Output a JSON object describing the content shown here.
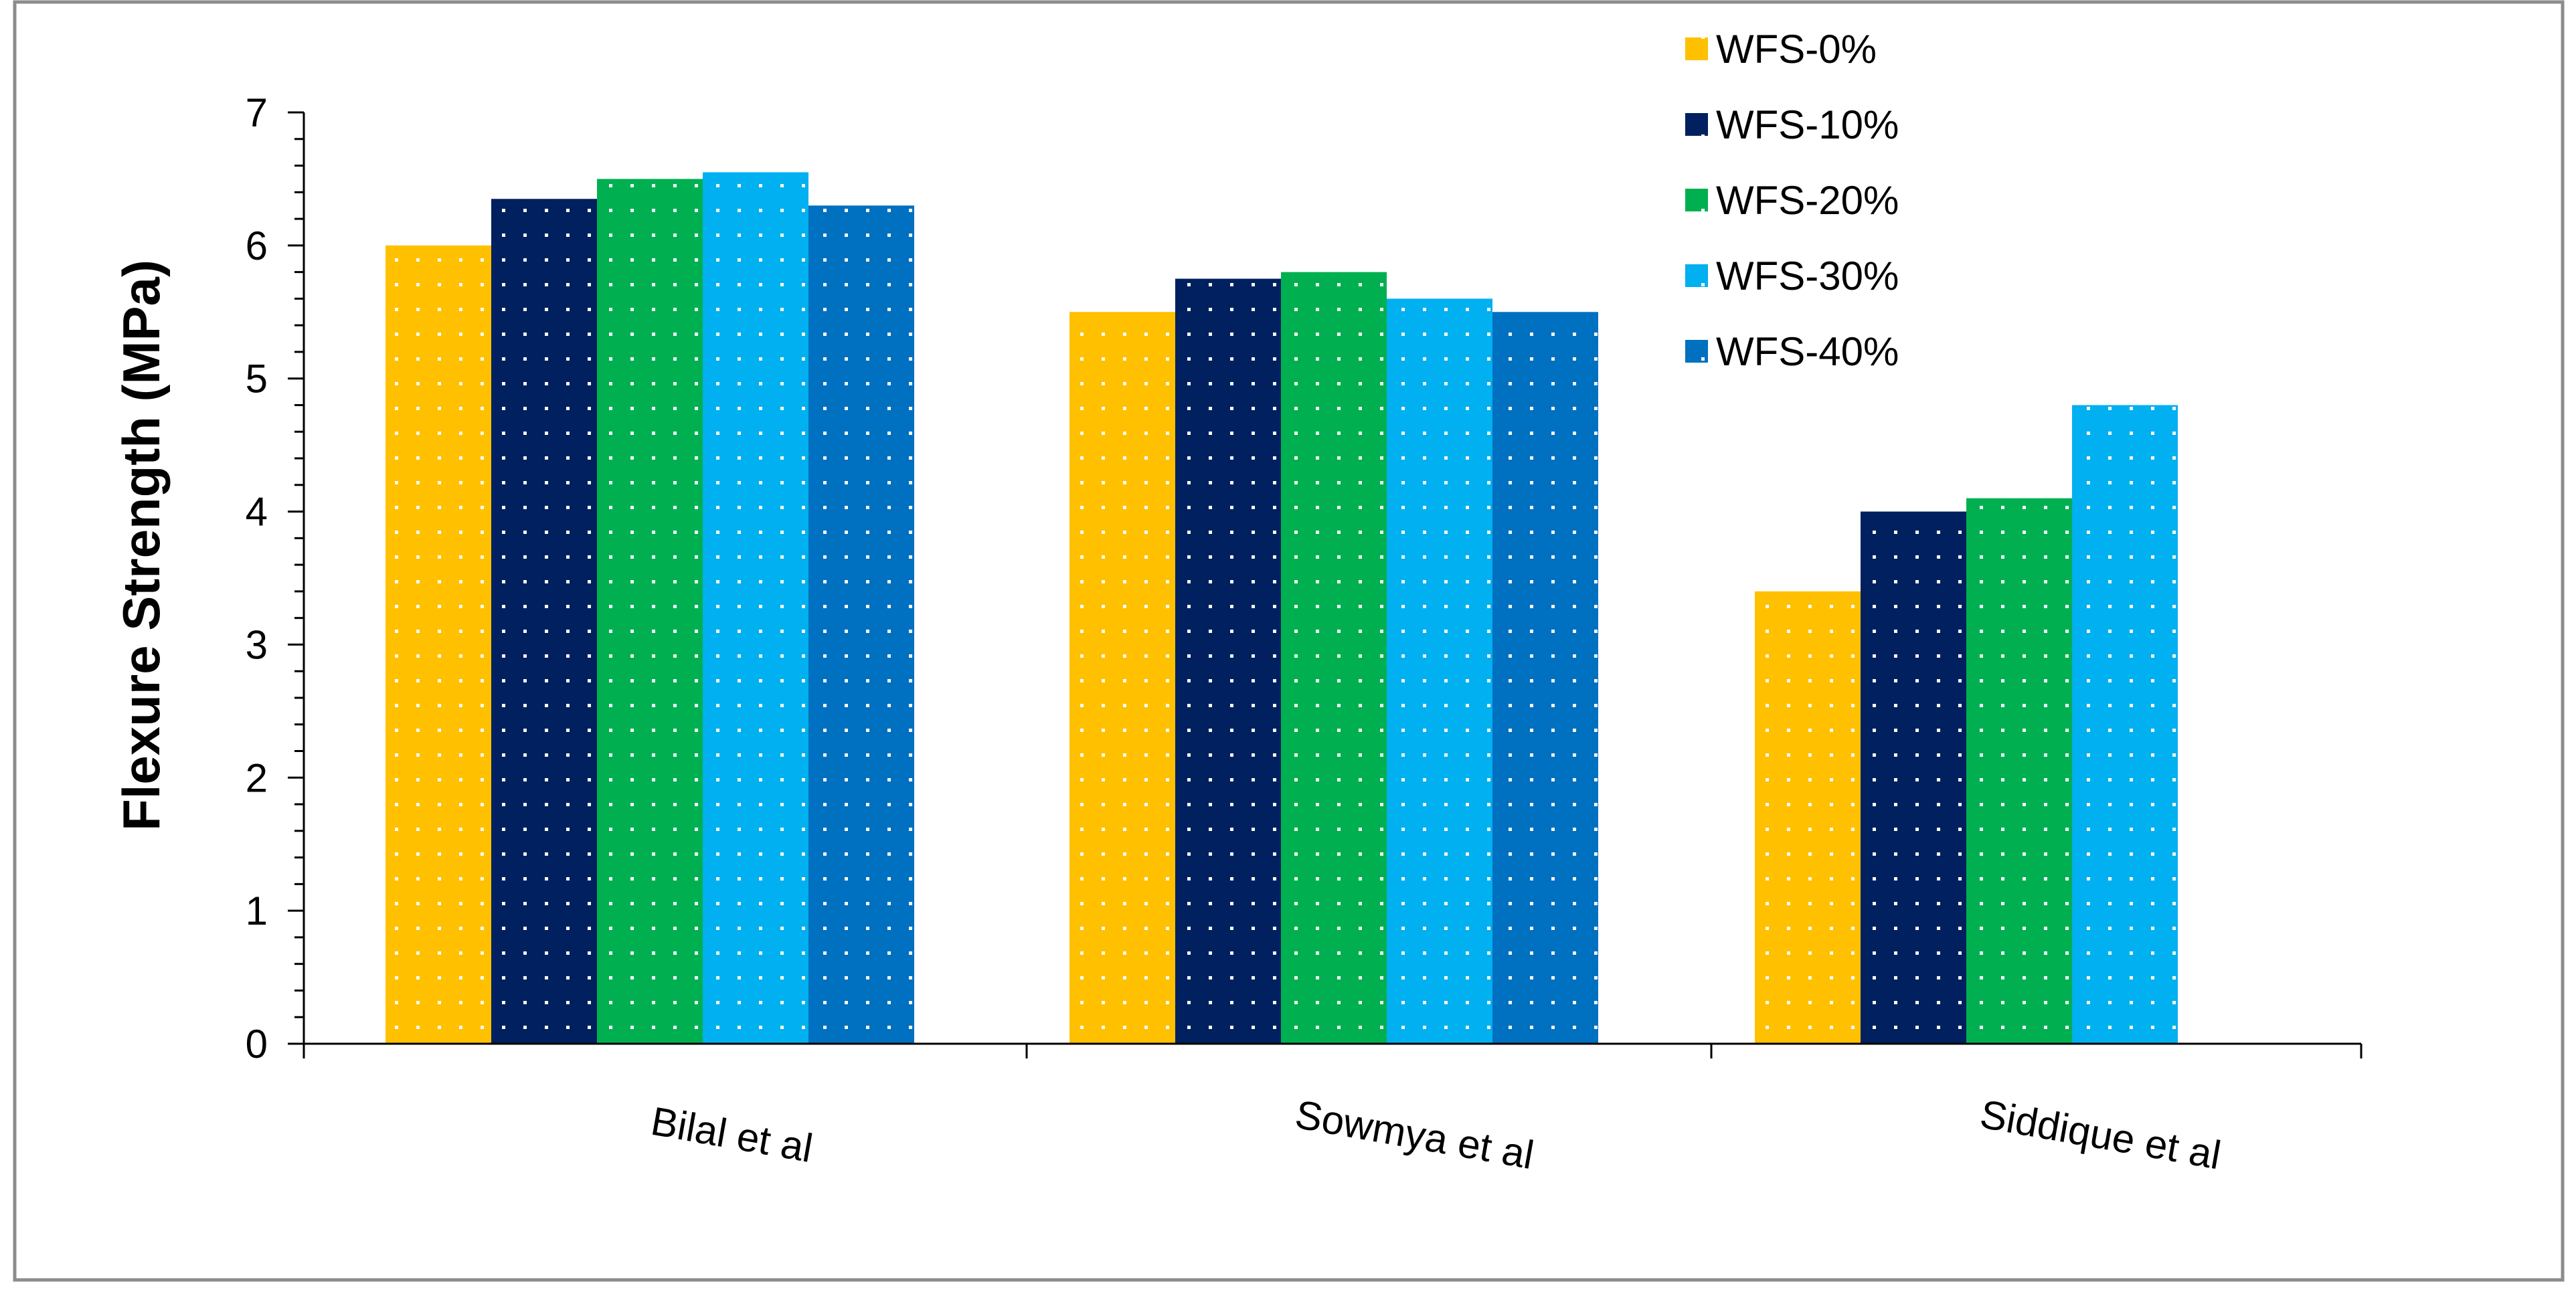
{
  "chart_data": {
    "type": "bar",
    "title": "",
    "xlabel": "",
    "ylabel": "Flexure Strength (MPa)",
    "ylim": [
      0,
      7
    ],
    "yticks": [
      "0",
      "1",
      "2",
      "3",
      "4",
      "5",
      "6",
      "7"
    ],
    "grid": false,
    "legend_position": "top-right",
    "categories": [
      "Bilal et al",
      "Sowmya et al",
      "Siddique et al"
    ],
    "series": [
      {
        "name": "WFS-0%",
        "color": "#FFC000",
        "values": [
          6.0,
          5.5,
          3.4
        ]
      },
      {
        "name": "WFS-10%",
        "color": "#002060",
        "values": [
          6.35,
          5.75,
          4.0
        ]
      },
      {
        "name": "WFS-20%",
        "color": "#00B050",
        "values": [
          6.5,
          5.8,
          4.1
        ]
      },
      {
        "name": "WFS-30%",
        "color": "#00B0F0",
        "values": [
          6.55,
          5.6,
          4.8
        ]
      },
      {
        "name": "WFS-40%",
        "color": "#0070C0",
        "values": [
          6.3,
          5.5,
          null
        ]
      }
    ]
  }
}
